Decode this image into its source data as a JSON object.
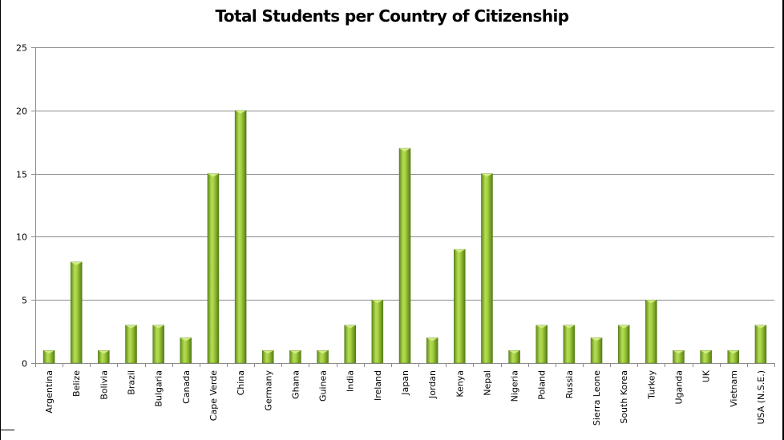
{
  "chart_data": {
    "type": "bar",
    "title": "Total Students per Country of Citizenship",
    "xlabel": "",
    "ylabel": "",
    "ylim": [
      0,
      25
    ],
    "yticks": [
      0,
      5,
      10,
      15,
      20,
      25
    ],
    "grid": true,
    "legend": "none",
    "bar_color": "#8dbb2c",
    "categories": [
      "Argentina",
      "Belize",
      "Bolivia",
      "Brazil",
      "Bulgaria",
      "Canada",
      "Cape Verde",
      "China",
      "Germany",
      "Ghana",
      "Guinea",
      "India",
      "Ireland",
      "Japan",
      "Jordan",
      "Kenya",
      "Nepal",
      "Nigeria",
      "Poland",
      "Russia",
      "Sierra Leone",
      "South Korea",
      "Turkey",
      "Uganda",
      "UK",
      "Vietnam",
      "USA (N.S.E.)"
    ],
    "values": [
      1,
      8,
      1,
      3,
      3,
      2,
      15,
      20,
      1,
      1,
      1,
      3,
      5,
      17,
      2,
      9,
      15,
      1,
      3,
      3,
      2,
      3,
      5,
      1,
      1,
      1,
      3
    ]
  }
}
